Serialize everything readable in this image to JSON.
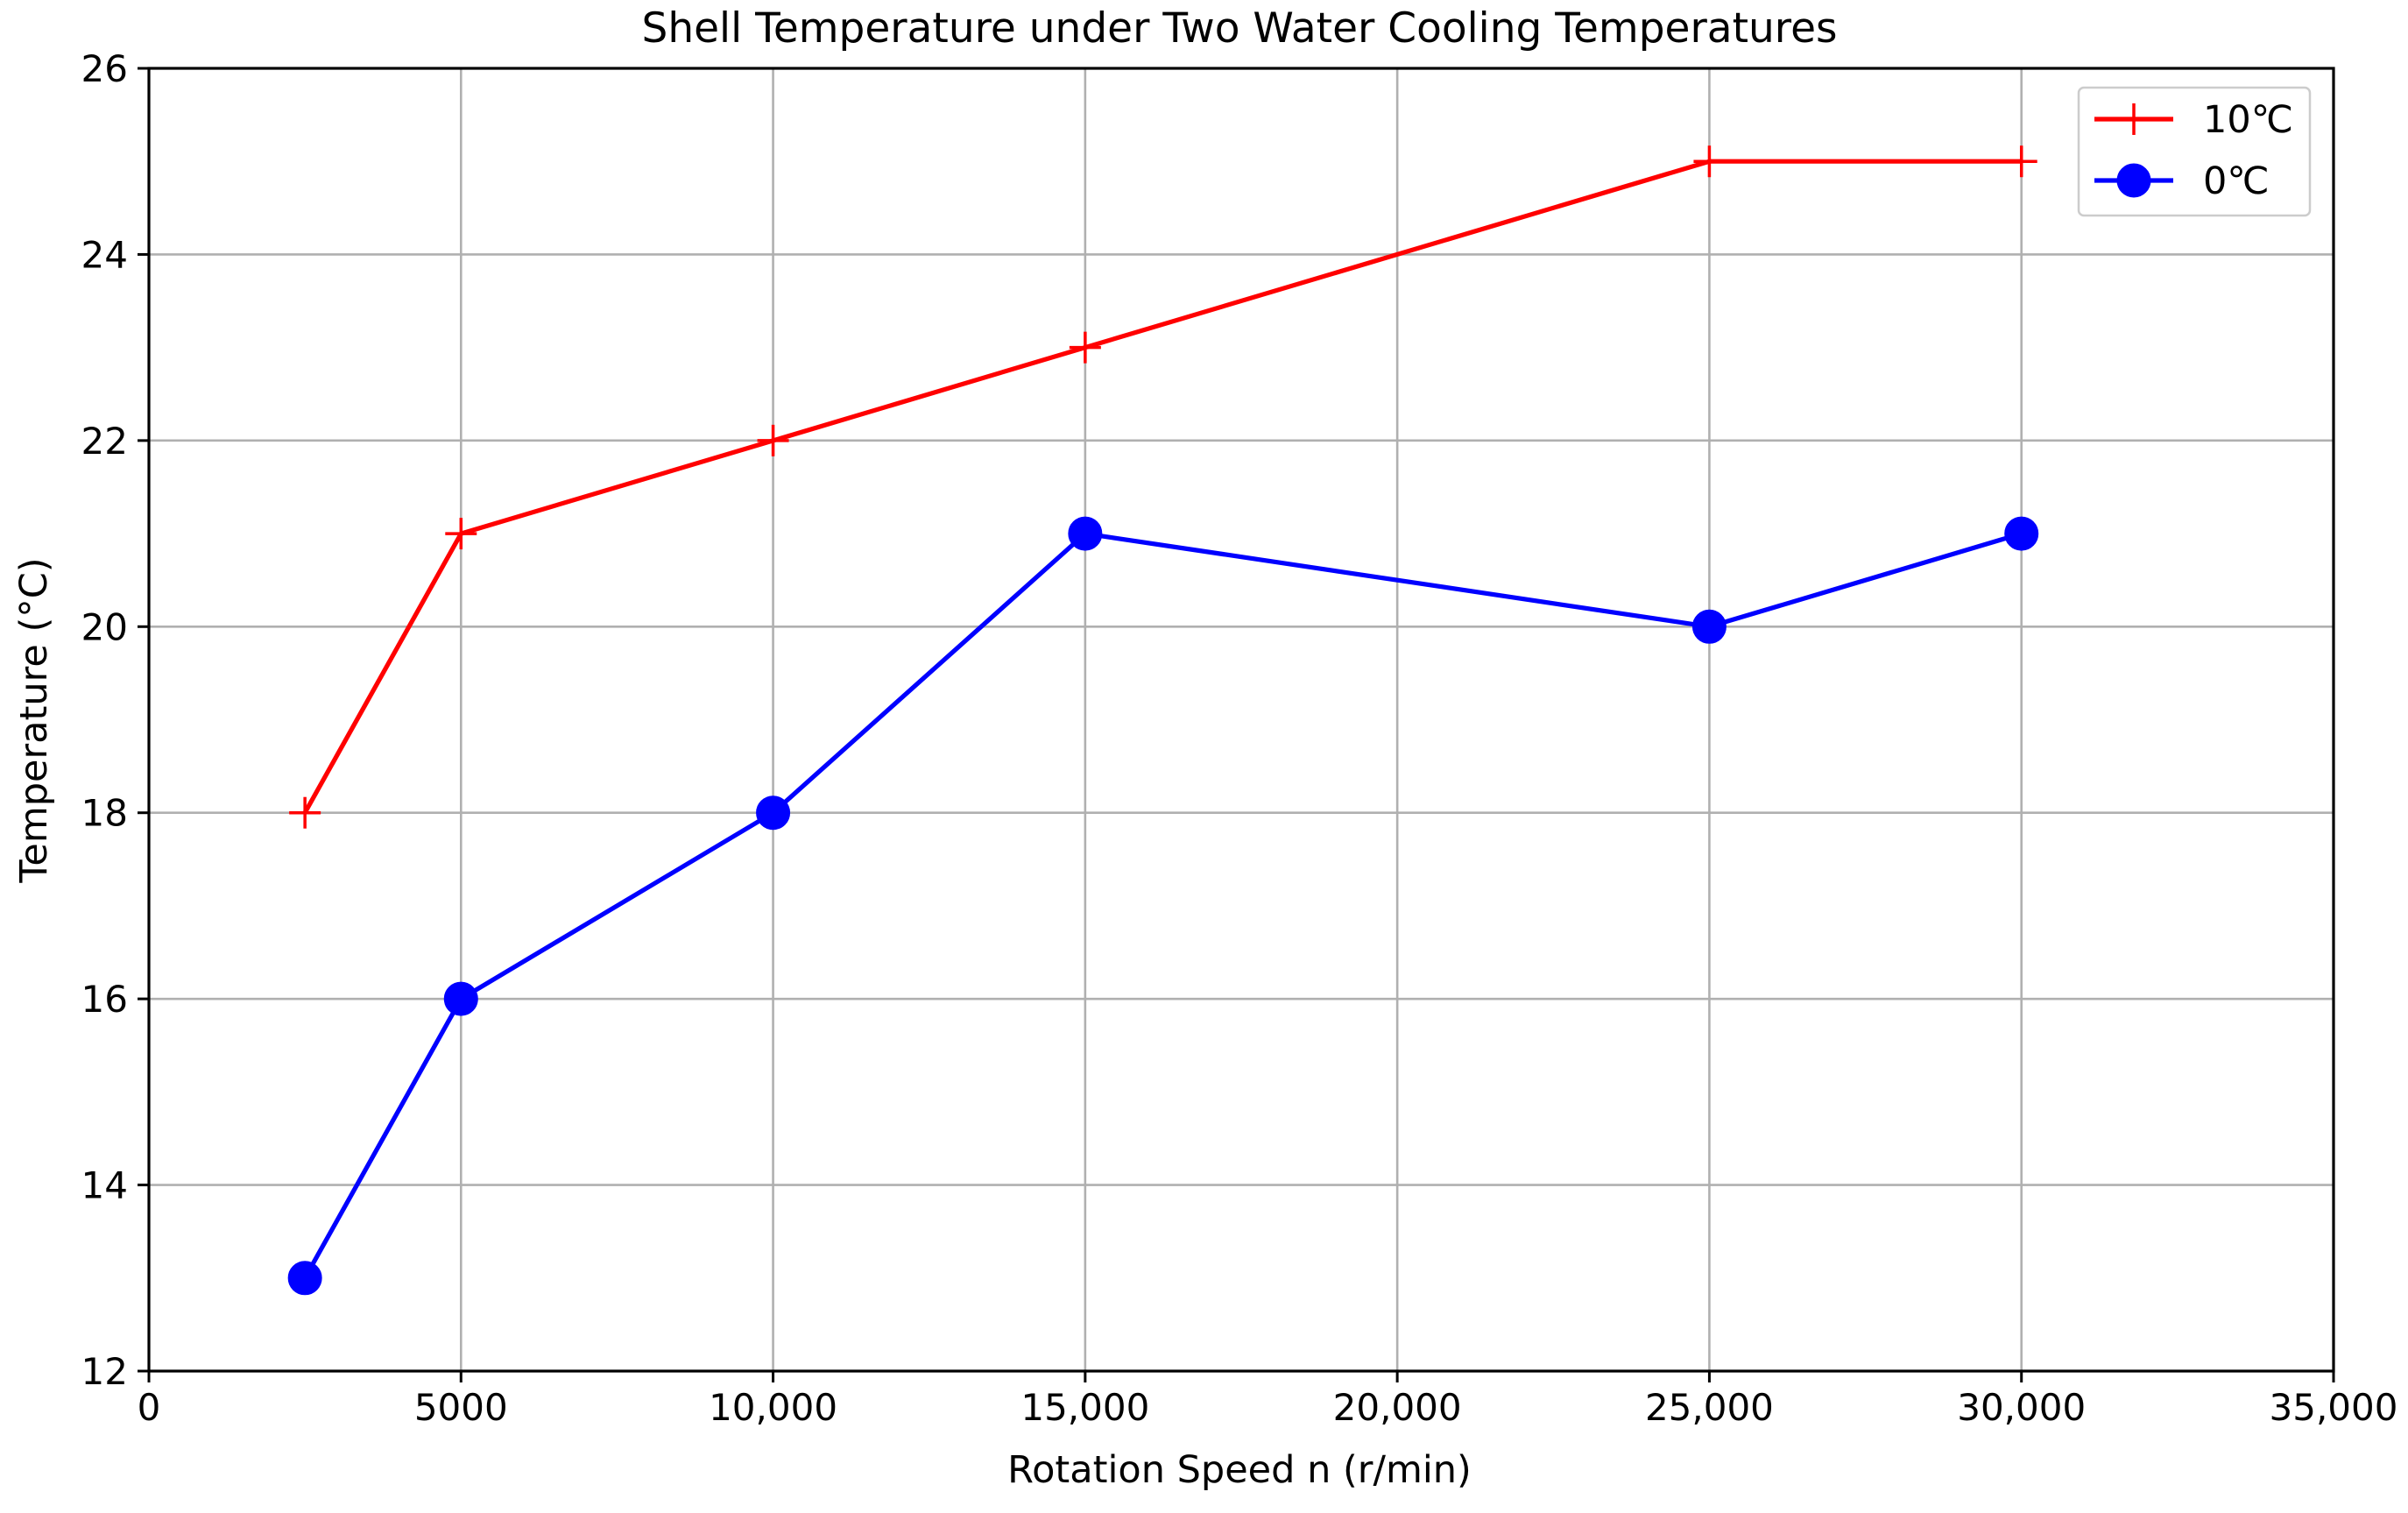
{
  "chart_data": {
    "type": "line",
    "title": "Shell Temperature under Two Water Cooling Temperatures",
    "xlabel": "Rotation Speed n (r/min)",
    "ylabel": "Temperature (°C)",
    "xlim": [
      0,
      35000
    ],
    "ylim": [
      12,
      26
    ],
    "grid": true,
    "legend_position": "top-right",
    "x_ticks": [
      {
        "value": 0,
        "label": "0"
      },
      {
        "value": 5000,
        "label": "5000"
      },
      {
        "value": 10000,
        "label": "10,000"
      },
      {
        "value": 15000,
        "label": "15,000"
      },
      {
        "value": 20000,
        "label": "20,000"
      },
      {
        "value": 25000,
        "label": "25,000"
      },
      {
        "value": 30000,
        "label": "30,000"
      },
      {
        "value": 35000,
        "label": "35,000"
      }
    ],
    "y_ticks": [
      {
        "value": 12,
        "label": "12"
      },
      {
        "value": 14,
        "label": "14"
      },
      {
        "value": 16,
        "label": "16"
      },
      {
        "value": 18,
        "label": "18"
      },
      {
        "value": 20,
        "label": "20"
      },
      {
        "value": 22,
        "label": "22"
      },
      {
        "value": 24,
        "label": "24"
      },
      {
        "value": 26,
        "label": "26"
      }
    ],
    "series": [
      {
        "name": "10℃",
        "color": "#ff0000",
        "marker": "plus",
        "x": [
          2500,
          5000,
          10000,
          15000,
          25000,
          30000
        ],
        "values": [
          18,
          21,
          22,
          23,
          25,
          25
        ]
      },
      {
        "name": "0℃",
        "color": "#0000ff",
        "marker": "circle",
        "x": [
          2500,
          5000,
          10000,
          15000,
          25000,
          30000
        ],
        "values": [
          13,
          16,
          18,
          21,
          20,
          21
        ]
      }
    ]
  }
}
